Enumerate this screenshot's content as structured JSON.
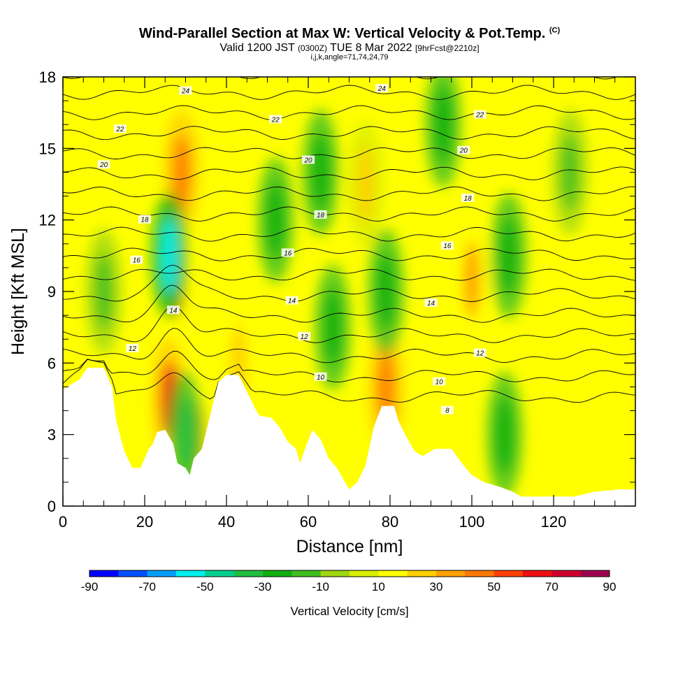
{
  "header": {
    "title": "Wind-Parallel Section at Max W: Vertical Velocity & Pot.Temp.",
    "copyright": "(C)",
    "valid_prefix": "Valid 1200 JST",
    "valid_utc": "(0300Z)",
    "valid_date": "TUE 8 Mar 2022",
    "forecast": "[9hrFcst@2210z]",
    "params": "i,j,k,angle=71,74,24,79"
  },
  "chart_data": {
    "type": "heatmap",
    "xlabel": "Distance [nm]",
    "ylabel": "Height [Kft MSL]",
    "xlim": [
      0,
      140
    ],
    "ylim": [
      0,
      18
    ],
    "x_ticks": [
      "0",
      "20",
      "40",
      "60",
      "80",
      "100",
      "120"
    ],
    "y_ticks": [
      "0",
      "3",
      "6",
      "9",
      "12",
      "15",
      "18"
    ],
    "colorbar": {
      "label": "Vertical Velocity [cm/s]",
      "tick_labels": [
        "-90",
        "-70",
        "-50",
        "-30",
        "-10",
        "10",
        "30",
        "50",
        "70",
        "90"
      ],
      "levels": [
        -90,
        -80,
        -70,
        -60,
        -50,
        -40,
        -30,
        -20,
        -10,
        0,
        10,
        20,
        30,
        40,
        50,
        60,
        70,
        80,
        90
      ],
      "colors": [
        "#0000ff",
        "#0050ff",
        "#00a0ff",
        "#00f0f0",
        "#00d090",
        "#20c040",
        "#10b010",
        "#40c020",
        "#a0d810",
        "#d8ee00",
        "#ffff00",
        "#ffd000",
        "#ffa000",
        "#ff7800",
        "#ff4000",
        "#f01010",
        "#d00030",
        "#a00050",
        "#600080"
      ]
    },
    "terrain_kft": [
      [
        0,
        4.9
      ],
      [
        4,
        5.3
      ],
      [
        6,
        5.8
      ],
      [
        10,
        5.8
      ],
      [
        12,
        5.0
      ],
      [
        13,
        3.6
      ],
      [
        15,
        2.3
      ],
      [
        17,
        1.6
      ],
      [
        19,
        1.6
      ],
      [
        20,
        2.0
      ],
      [
        21,
        2.4
      ],
      [
        22,
        2.6
      ],
      [
        23,
        3.1
      ],
      [
        25,
        3.2
      ],
      [
        27,
        2.6
      ],
      [
        28,
        1.8
      ],
      [
        30,
        1.6
      ],
      [
        31,
        1.3
      ],
      [
        32,
        2.0
      ],
      [
        34,
        2.4
      ],
      [
        36,
        3.8
      ],
      [
        38,
        5.2
      ],
      [
        40,
        5.5
      ],
      [
        43,
        5.5
      ],
      [
        45,
        4.8
      ],
      [
        47,
        4.1
      ],
      [
        48,
        3.8
      ],
      [
        51,
        3.7
      ],
      [
        53,
        3.3
      ],
      [
        55,
        2.7
      ],
      [
        57,
        2.4
      ],
      [
        58,
        1.8
      ],
      [
        59,
        2.3
      ],
      [
        61,
        3.2
      ],
      [
        63,
        2.8
      ],
      [
        65,
        2.0
      ],
      [
        67,
        1.6
      ],
      [
        69,
        1.0
      ],
      [
        70,
        0.7
      ],
      [
        72,
        1.0
      ],
      [
        74,
        1.7
      ],
      [
        76,
        3.3
      ],
      [
        78,
        4.2
      ],
      [
        81,
        4.2
      ],
      [
        82,
        3.6
      ],
      [
        84,
        2.9
      ],
      [
        86,
        2.3
      ],
      [
        88,
        2.1
      ],
      [
        91,
        2.4
      ],
      [
        95,
        2.4
      ],
      [
        98,
        1.7
      ],
      [
        100,
        1.3
      ],
      [
        103,
        1.0
      ],
      [
        107,
        0.8
      ],
      [
        110,
        0.6
      ],
      [
        112,
        0.4
      ],
      [
        118,
        0.4
      ],
      [
        125,
        0.4
      ],
      [
        130,
        0.6
      ],
      [
        136,
        0.7
      ],
      [
        140,
        0.7
      ]
    ],
    "theta_contour_labels": [
      "8",
      "10",
      "12",
      "14",
      "16",
      "18",
      "20",
      "22",
      "24"
    ],
    "theta_labels": [
      {
        "text": "24",
        "x": 30,
        "y": 17.4
      },
      {
        "text": "24",
        "x": 78,
        "y": 17.5
      },
      {
        "text": "22",
        "x": 14,
        "y": 15.8
      },
      {
        "text": "22",
        "x": 52,
        "y": 16.2
      },
      {
        "text": "22",
        "x": 102,
        "y": 16.4
      },
      {
        "text": "20",
        "x": 10,
        "y": 14.3
      },
      {
        "text": "20",
        "x": 60,
        "y": 14.5
      },
      {
        "text": "20",
        "x": 98,
        "y": 14.9
      },
      {
        "text": "18",
        "x": 20,
        "y": 12.0
      },
      {
        "text": "18",
        "x": 63,
        "y": 12.2
      },
      {
        "text": "18",
        "x": 99,
        "y": 12.9
      },
      {
        "text": "16",
        "x": 18,
        "y": 10.3
      },
      {
        "text": "16",
        "x": 55,
        "y": 10.6
      },
      {
        "text": "16",
        "x": 94,
        "y": 10.9
      },
      {
        "text": "14",
        "x": 27,
        "y": 8.2
      },
      {
        "text": "14",
        "x": 56,
        "y": 8.6
      },
      {
        "text": "14",
        "x": 90,
        "y": 8.5
      },
      {
        "text": "12",
        "x": 17,
        "y": 6.6
      },
      {
        "text": "12",
        "x": 59,
        "y": 7.1
      },
      {
        "text": "12",
        "x": 102,
        "y": 6.4
      },
      {
        "text": "10",
        "x": 63,
        "y": 5.4
      },
      {
        "text": "10",
        "x": 92,
        "y": 5.2
      },
      {
        "text": "8",
        "x": 94,
        "y": 4.0
      }
    ],
    "updraft_cores": [
      {
        "x": 26,
        "y": 4.5,
        "w": 60
      },
      {
        "x": 29,
        "y": 14.0,
        "w": 45
      },
      {
        "x": 28,
        "y": 9.5,
        "w": 35
      },
      {
        "x": 79,
        "y": 5.0,
        "w": 45
      },
      {
        "x": 100,
        "y": 9.5,
        "w": 30
      },
      {
        "x": 33,
        "y": 2.8,
        "w": 30
      },
      {
        "x": 43,
        "y": 6.0,
        "w": 25
      },
      {
        "x": 74,
        "y": 13.5,
        "w": 20
      }
    ],
    "downdraft_cores": [
      {
        "x": 26,
        "y": 10.5,
        "w": -55
      },
      {
        "x": 30,
        "y": 3.0,
        "w": -35
      },
      {
        "x": 52,
        "y": 12.0,
        "w": -30
      },
      {
        "x": 66,
        "y": 7.5,
        "w": -30
      },
      {
        "x": 63,
        "y": 14.0,
        "w": -25
      },
      {
        "x": 79,
        "y": 9.0,
        "w": -25
      },
      {
        "x": 93,
        "y": 16.0,
        "w": -30
      },
      {
        "x": 109,
        "y": 10.5,
        "w": -30
      },
      {
        "x": 108,
        "y": 3.0,
        "w": -25
      },
      {
        "x": 124,
        "y": 14.0,
        "w": -20
      },
      {
        "x": 10,
        "y": 9.0,
        "w": -15
      }
    ]
  }
}
